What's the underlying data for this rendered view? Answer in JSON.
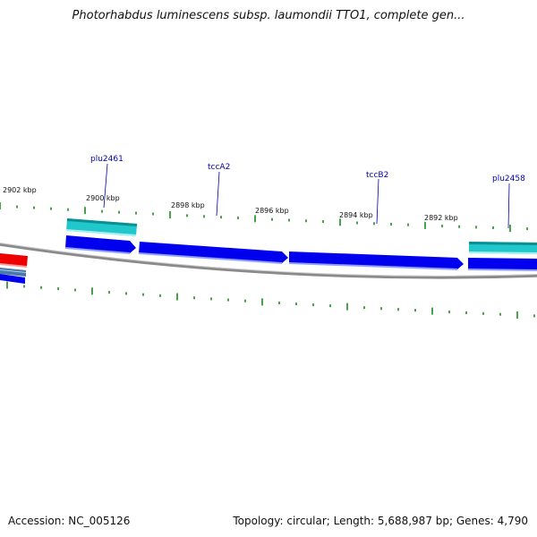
{
  "title": "Photorhabdus luminescens subsp. laumondii TTO1, complete gen...",
  "kbp_labels": [
    "2902 kbp",
    "2900 kbp",
    "2898 kbp",
    "2896 kbp",
    "2894 kbp",
    "2892 kbp"
  ],
  "gene_labels": [
    "plu2461",
    "tccA2",
    "tccB2",
    "plu2458"
  ],
  "footer": {
    "accession": "Accession: NC_005126",
    "summary": "Topology: circular; Length: 5,688,987 bp; Genes: 4,790"
  },
  "colors": {
    "tick": "#1a8a1a",
    "backbone": "#8a8a8a",
    "gene_blue": "#0000ee",
    "gene_cyan": "#20c8cc",
    "gene_red": "#ee0000",
    "gene_steel": "#4a78a8",
    "label": "#0000aa"
  }
}
